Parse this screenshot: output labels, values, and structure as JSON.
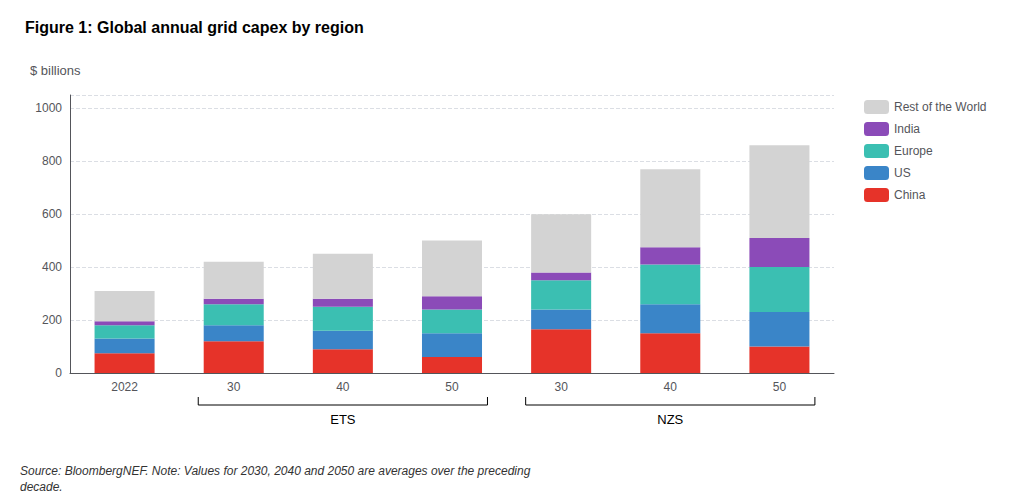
{
  "chart_data": {
    "type": "bar",
    "title": "Figure 1: Global annual grid capex by region",
    "ylabel": "$ billions",
    "source": "Source: BloombergNEF. Note: Values for 2030, 2040 and 2050 are averages over the preceding\ndecade.",
    "categories": [
      "2022",
      "30",
      "40",
      "50",
      "30",
      "40",
      "50"
    ],
    "series": [
      {
        "name": "Rest of the World",
        "color": "#d3d3d3",
        "values": [
          115,
          140,
          170,
          210,
          220,
          295,
          350
        ]
      },
      {
        "name": "India",
        "color": "#8b4bb8",
        "values": [
          15,
          20,
          30,
          50,
          30,
          65,
          110
        ]
      },
      {
        "name": "Europe",
        "color": "#3bbfb2",
        "values": [
          50,
          80,
          90,
          90,
          110,
          150,
          170
        ]
      },
      {
        "name": "US",
        "color": "#3a85c8",
        "values": [
          55,
          60,
          70,
          90,
          75,
          110,
          130
        ]
      },
      {
        "name": "China",
        "color": "#e63329",
        "values": [
          75,
          120,
          90,
          60,
          165,
          150,
          100
        ]
      }
    ],
    "stacked": true,
    "ylim": [
      0,
      1050
    ],
    "yticks": [
      0,
      200,
      400,
      600,
      800,
      1000
    ],
    "grid": true,
    "legend": "right",
    "annotations": [
      {
        "text": "ETS",
        "first": 1,
        "last": 3
      },
      {
        "text": "NZS",
        "first": 4,
        "last": 6
      }
    ]
  }
}
